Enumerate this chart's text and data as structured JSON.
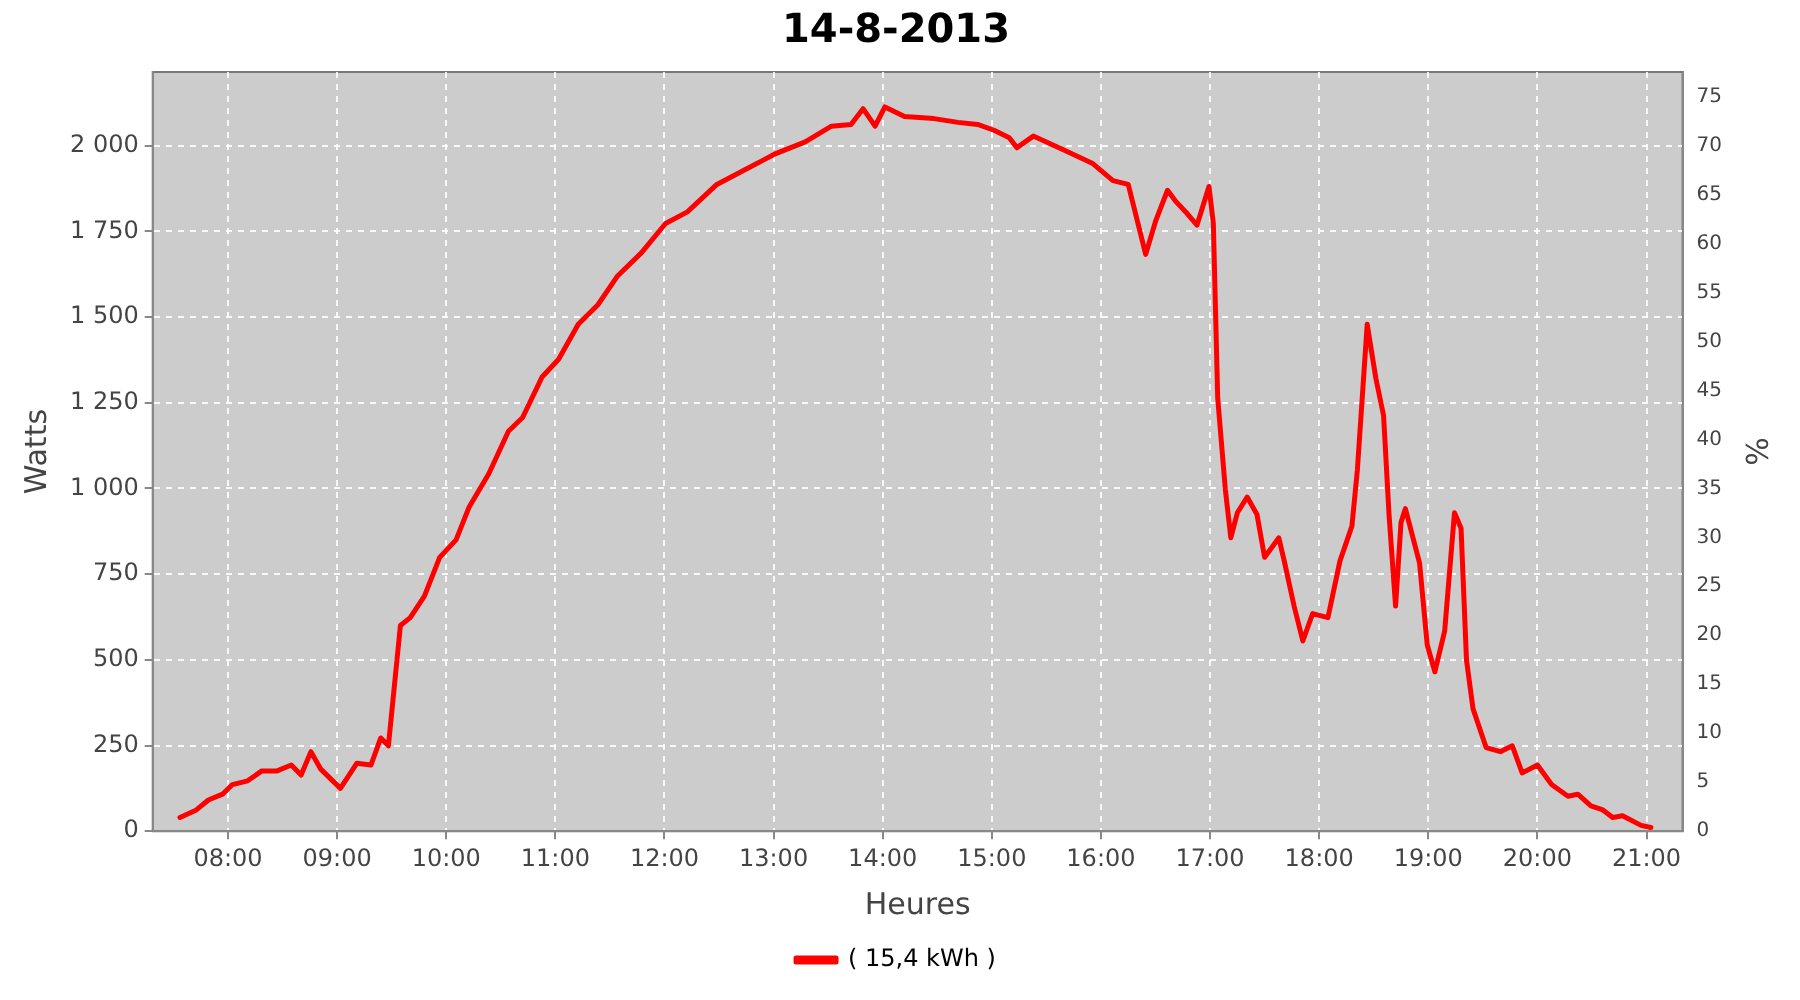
{
  "chart_data": {
    "type": "line",
    "title": "14-8-2013",
    "xlabel": "Heures",
    "ylabel": "Watts",
    "y2label": "%",
    "xlim": [
      7.31,
      21.33
    ],
    "xticks": [
      {
        "value": 8,
        "label": "08:00"
      },
      {
        "value": 9,
        "label": "09:00"
      },
      {
        "value": 10,
        "label": "10:00"
      },
      {
        "value": 11,
        "label": "11:00"
      },
      {
        "value": 12,
        "label": "12:00"
      },
      {
        "value": 13,
        "label": "13:00"
      },
      {
        "value": 14,
        "label": "14:00"
      },
      {
        "value": 15,
        "label": "15:00"
      },
      {
        "value": 16,
        "label": "16:00"
      },
      {
        "value": 17,
        "label": "17:00"
      },
      {
        "value": 18,
        "label": "18:00"
      },
      {
        "value": 19,
        "label": "19:00"
      },
      {
        "value": 20,
        "label": "20:00"
      },
      {
        "value": 21,
        "label": "21:00"
      }
    ],
    "ylim": [
      0,
      2215
    ],
    "yticks": [
      0,
      250,
      500,
      750,
      {
        "value": 1000,
        "label": "1 000"
      },
      {
        "value": 1250,
        "label": "1 250"
      },
      {
        "value": 1500,
        "label": "1 500"
      },
      {
        "value": 1750,
        "label": "1 750"
      },
      {
        "value": 2000,
        "label": "2 000"
      }
    ],
    "y2lim": [
      0,
      77.5
    ],
    "y2ticks": [
      0,
      5,
      10,
      15,
      20,
      25,
      30,
      35,
      40,
      45,
      50,
      55,
      60,
      65,
      70,
      75
    ],
    "grid": true,
    "legend": "bottom",
    "marker": "none",
    "line_style": "solid",
    "series": [
      {
        "name": "( 15,4 kWh )",
        "color": "#ff0000",
        "x": [
          7.56,
          7.71,
          7.82,
          7.95,
          8.04,
          8.18,
          8.31,
          8.45,
          8.58,
          8.67,
          8.76,
          8.85,
          9.03,
          9.18,
          9.31,
          9.4,
          9.47,
          9.58,
          9.67,
          9.8,
          9.94,
          10.09,
          10.21,
          10.39,
          10.57,
          10.7,
          10.88,
          11.03,
          11.21,
          11.39,
          11.57,
          11.79,
          12.01,
          12.21,
          12.48,
          12.75,
          13.02,
          13.29,
          13.53,
          13.71,
          13.82,
          13.93,
          14.02,
          14.2,
          14.47,
          14.69,
          14.87,
          15.02,
          15.16,
          15.23,
          15.38,
          15.65,
          15.92,
          16.11,
          16.25,
          16.41,
          16.5,
          16.61,
          16.69,
          16.79,
          16.88,
          16.99,
          17.03,
          17.07,
          17.14,
          17.19,
          17.25,
          17.34,
          17.43,
          17.5,
          17.63,
          17.68,
          17.77,
          17.85,
          17.94,
          18.08,
          18.19,
          18.3,
          18.35,
          18.44,
          18.52,
          18.59,
          18.64,
          18.7,
          18.75,
          18.79,
          18.92,
          18.99,
          19.06,
          19.15,
          19.24,
          19.3,
          19.35,
          19.41,
          19.53,
          19.66,
          19.77,
          19.86,
          20.0,
          20.13,
          20.28,
          20.37,
          20.49,
          20.6,
          20.69,
          20.78,
          20.95,
          21.04
        ],
        "values": [
          40,
          62,
          91,
          108,
          136,
          147,
          176,
          176,
          193,
          164,
          232,
          181,
          125,
          198,
          193,
          272,
          249,
          600,
          623,
          686,
          799,
          850,
          946,
          1043,
          1167,
          1207,
          1326,
          1377,
          1479,
          1536,
          1620,
          1688,
          1773,
          1807,
          1887,
          1932,
          1977,
          2011,
          2057,
          2062,
          2108,
          2057,
          2113,
          2085,
          2079,
          2068,
          2062,
          2045,
          2023,
          1994,
          2028,
          1989,
          1949,
          1898,
          1887,
          1683,
          1779,
          1870,
          1836,
          1802,
          1768,
          1881,
          1773,
          1264,
          997,
          856,
          929,
          975,
          924,
          799,
          856,
          788,
          657,
          555,
          635,
          623,
          788,
          890,
          1054,
          1479,
          1320,
          1213,
          924,
          657,
          901,
          941,
          782,
          544,
          465,
          584,
          929,
          884,
          499,
          357,
          244,
          232,
          249,
          170,
          193,
          136,
          102,
          108,
          74,
          62,
          40,
          45,
          17,
          11
        ]
      }
    ]
  }
}
